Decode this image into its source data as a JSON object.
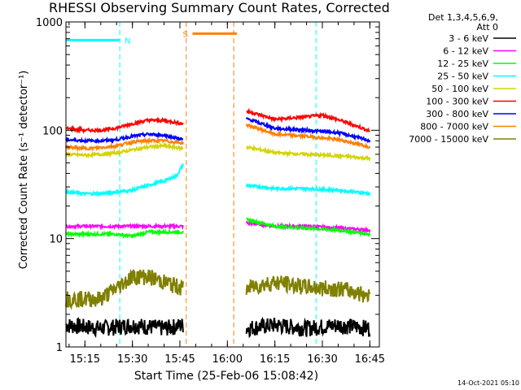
{
  "chart_data": {
    "type": "line",
    "title": "RHESSI Observing Summary Count Rates, Corrected",
    "xlabel": "Start Time (25-Feb-06 15:08:42)",
    "ylabel": "Corrected Count Rate (s⁻¹ detector⁻¹)",
    "y_scale": "log",
    "ylim": [
      1,
      1000
    ],
    "xlim": [
      "15:09",
      "16:48"
    ],
    "x_ticks": [
      "15:15",
      "15:30",
      "15:45",
      "16:00",
      "16:15",
      "16:30",
      "16:45"
    ],
    "y_ticks": [
      "1",
      "10",
      "100",
      "1000"
    ],
    "grid": false,
    "legend_header": [
      "Det 1,3,4,5,6,9,",
      "Att 0"
    ],
    "legend_placement": "right",
    "series": [
      {
        "name": "3 - 6 keV",
        "color": "#000000",
        "segments": [
          {
            "x": [
              "15:09",
              "15:20",
              "15:30",
              "15:40",
              "15:46"
            ],
            "y": [
              1.6,
              1.5,
              1.6,
              1.5,
              1.6
            ]
          },
          {
            "x": [
              "16:06",
              "16:15",
              "16:25",
              "16:35",
              "16:45"
            ],
            "y": [
              1.5,
              1.6,
              1.5,
              1.6,
              1.5
            ]
          }
        ]
      },
      {
        "name": "6 - 12 keV",
        "color": "#ff00ff",
        "segments": [
          {
            "x": [
              "15:09",
              "15:15",
              "15:20",
              "15:25",
              "15:30",
              "15:35",
              "15:40",
              "15:46"
            ],
            "y": [
              13,
              13,
              13,
              13,
              13,
              13,
              13,
              13
            ]
          },
          {
            "x": [
              "16:06",
              "16:15",
              "16:25",
              "16:35",
              "16:45"
            ],
            "y": [
              14,
              13,
              13,
              12.5,
              12
            ]
          }
        ]
      },
      {
        "name": "12 - 25 keV",
        "color": "#00ff00",
        "segments": [
          {
            "x": [
              "15:09",
              "15:15",
              "15:20",
              "15:25",
              "15:30",
              "15:35",
              "15:40",
              "15:46"
            ],
            "y": [
              11,
              11,
              11,
              11,
              10.5,
              11.5,
              11.5,
              11.5
            ]
          },
          {
            "x": [
              "16:06",
              "16:15",
              "16:25",
              "16:35",
              "16:45"
            ],
            "y": [
              15,
              13,
              12.5,
              12,
              11
            ]
          }
        ]
      },
      {
        "name": "25 - 50 keV",
        "color": "#00ffff",
        "segments": [
          {
            "x": [
              "15:09",
              "15:15",
              "15:20",
              "15:25",
              "15:30",
              "15:35",
              "15:40",
              "15:44",
              "15:46"
            ],
            "y": [
              27,
              26,
              26,
              27,
              28,
              31,
              34,
              38,
              48
            ]
          },
          {
            "x": [
              "16:06",
              "16:15",
              "16:25",
              "16:35",
              "16:45"
            ],
            "y": [
              31,
              29,
              29,
              28,
              26
            ]
          }
        ]
      },
      {
        "name": "50 - 100 keV",
        "color": "#d4d400",
        "segments": [
          {
            "x": [
              "15:09",
              "15:15",
              "15:20",
              "15:25",
              "15:30",
              "15:35",
              "15:40",
              "15:46"
            ],
            "y": [
              60,
              59,
              60,
              62,
              66,
              70,
              72,
              68
            ]
          },
          {
            "x": [
              "16:06",
              "16:15",
              "16:25",
              "16:35",
              "16:45"
            ],
            "y": [
              70,
              62,
              60,
              58,
              55
            ]
          }
        ]
      },
      {
        "name": "100 - 300 keV",
        "color": "#ff0000",
        "segments": [
          {
            "x": [
              "15:09",
              "15:15",
              "15:20",
              "15:25",
              "15:30",
              "15:35",
              "15:40",
              "15:46"
            ],
            "y": [
              104,
              100,
              100,
              105,
              115,
              124,
              123,
              115
            ]
          },
          {
            "x": [
              "16:06",
              "16:15",
              "16:25",
              "16:30",
              "16:35",
              "16:45"
            ],
            "y": [
              150,
              126,
              133,
              138,
              125,
              98
            ]
          }
        ]
      },
      {
        "name": "300 - 800 keV",
        "color": "#0000ff",
        "segments": [
          {
            "x": [
              "15:09",
              "15:15",
              "15:20",
              "15:25",
              "15:30",
              "15:35",
              "15:40",
              "15:46"
            ],
            "y": [
              82,
              80,
              80,
              82,
              88,
              92,
              90,
              82
            ]
          },
          {
            "x": [
              "16:06",
              "16:15",
              "16:25",
              "16:35",
              "16:45"
            ],
            "y": [
              128,
              104,
              100,
              95,
              80
            ]
          }
        ]
      },
      {
        "name": "800 - 7000 keV",
        "color": "#ff8000",
        "segments": [
          {
            "x": [
              "15:09",
              "15:15",
              "15:20",
              "15:25",
              "15:30",
              "15:35",
              "15:40",
              "15:46"
            ],
            "y": [
              70,
              68,
              69,
              72,
              78,
              80,
              80,
              76
            ]
          },
          {
            "x": [
              "16:06",
              "16:15",
              "16:25",
              "16:35",
              "16:45"
            ],
            "y": [
              112,
              92,
              88,
              82,
              70
            ]
          }
        ]
      },
      {
        "name": "7000 - 15000 keV",
        "color": "#808000",
        "segments": [
          {
            "x": [
              "15:09",
              "15:20",
              "15:25",
              "15:30",
              "15:35",
              "15:40",
              "15:46"
            ],
            "y": [
              2.8,
              2.8,
              3.5,
              4.5,
              4.5,
              4,
              3.5
            ]
          },
          {
            "x": [
              "16:06",
              "16:15",
              "16:25",
              "16:30",
              "16:35",
              "16:45"
            ],
            "y": [
              3.5,
              4,
              3.6,
              3.5,
              3.5,
              3
            ]
          }
        ]
      }
    ],
    "markers": [
      {
        "label": "N",
        "color": "#00ffff",
        "bar": {
          "x0": "15:09",
          "x1": "15:26",
          "y": 680
        },
        "lines": [
          "15:09",
          "15:26",
          "16:28",
          "16:48"
        ]
      },
      {
        "label": "S",
        "color": "#ff8000",
        "bar": {
          "x0": "15:49",
          "x1": "16:03",
          "y": 780
        },
        "lines": [
          "15:47",
          "16:02"
        ]
      }
    ]
  },
  "footer": {
    "date_stamp": "14-Oct-2021 05:10"
  }
}
